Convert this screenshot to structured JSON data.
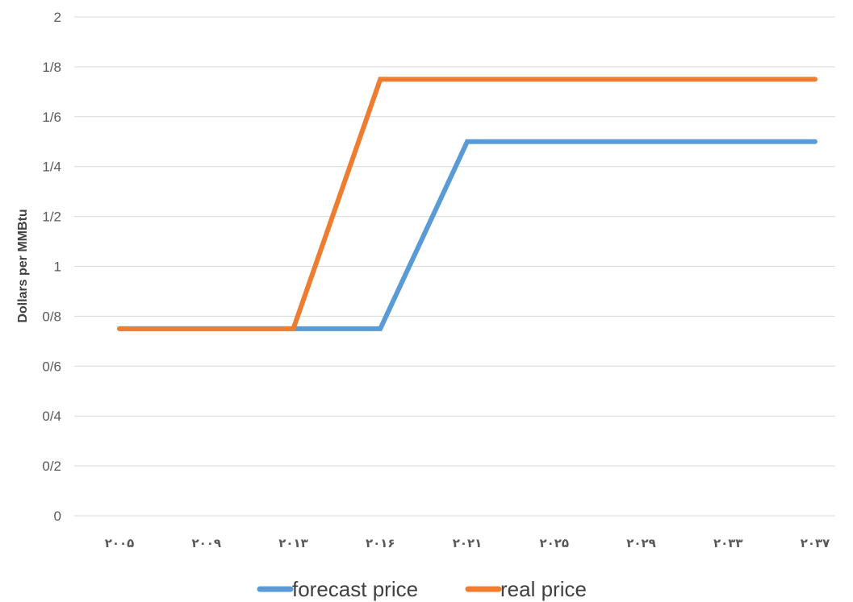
{
  "chart_data": {
    "type": "line",
    "title": "",
    "xlabel": "",
    "ylabel": "Dollars per MMBtu",
    "categories": [
      "۲۰۰۵",
      "۲۰۰۹",
      "۲۰۱۳",
      "۲۰۱۶",
      "۲۰۲۱",
      "۲۰۲۵",
      "۲۰۲۹",
      "۲۰۳۳",
      "۲۰۳۷"
    ],
    "y_ticks": [
      "0",
      "0/2",
      "0/4",
      "0/6",
      "0/8",
      "1",
      "1/2",
      "1/4",
      "1/6",
      "1/8",
      "2"
    ],
    "ylim": [
      0,
      2
    ],
    "grid": true,
    "legend_position": "bottom",
    "series": [
      {
        "name": "forecast price",
        "color": "#5b9bd5",
        "points": [
          [
            0,
            0.75
          ],
          [
            1,
            0.75
          ],
          [
            2,
            0.75
          ],
          [
            3,
            0.75
          ],
          [
            4,
            1.5
          ],
          [
            5,
            1.5
          ],
          [
            6,
            1.5
          ],
          [
            7,
            1.5
          ],
          [
            8,
            1.5
          ]
        ]
      },
      {
        "name": "real price",
        "color": "#ed7d31",
        "points": [
          [
            0,
            0.75
          ],
          [
            1,
            0.75
          ],
          [
            2,
            0.75
          ],
          [
            3,
            1.75
          ],
          [
            4,
            1.75
          ],
          [
            5,
            1.75
          ],
          [
            6,
            1.75
          ],
          [
            7,
            1.75
          ],
          [
            8,
            1.75
          ]
        ]
      }
    ]
  }
}
